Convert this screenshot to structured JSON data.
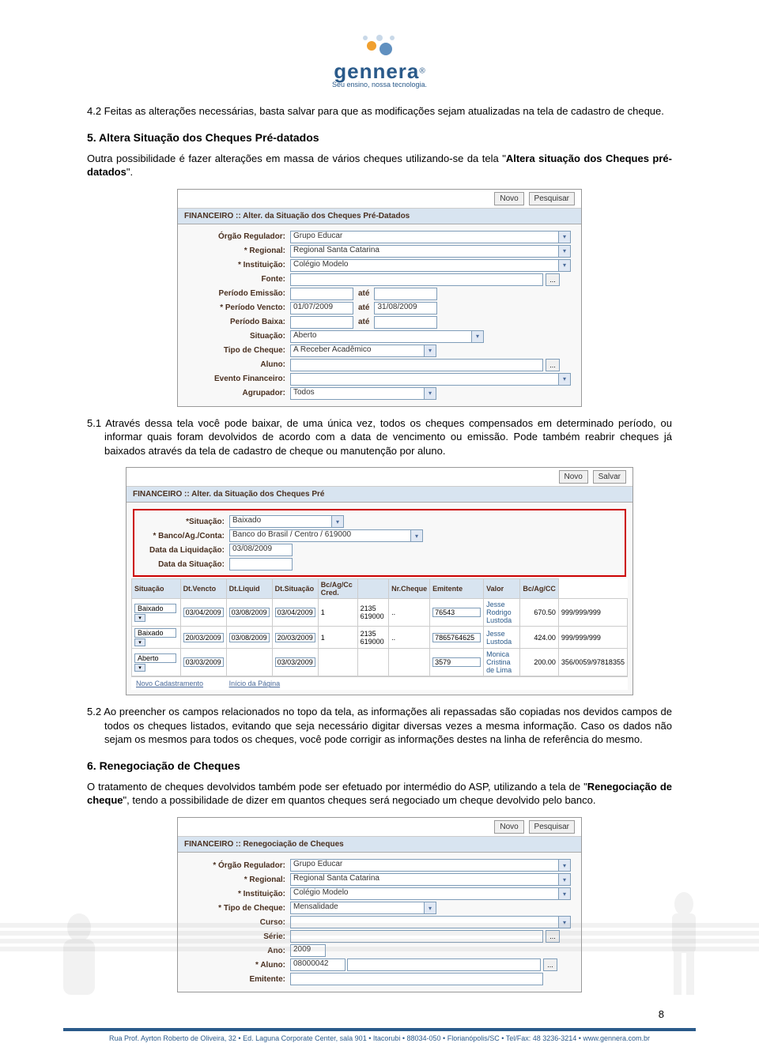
{
  "logo": {
    "brand": "gennera",
    "trademark": "®",
    "tagline": "Seu ensino, nossa tecnologia.",
    "colors": {
      "primary": "#2a5a8a",
      "accent_orange": "#f0a030",
      "accent_blue": "#6090c0"
    }
  },
  "para_4_2": "4.2 Feitas as alterações necessárias, basta salvar para que as modificações sejam atualizadas na tela de cadastro de cheque.",
  "section_5_title": "5. Altera Situação dos Cheques Pré-datados",
  "para_5_intro_1": "Outra possibilidade é fazer alterações em massa de vários cheques utilizando-se da tela \"",
  "para_5_intro_bold": "Altera situação dos Cheques pré-datados",
  "para_5_intro_2": "\".",
  "screenshot1": {
    "toolbar": {
      "novo": "Novo",
      "pesquisar": "Pesquisar"
    },
    "header": "FINANCEIRO :: Alter. da Situação dos Cheques Pré-Datados",
    "fields": {
      "orgao_label": "Órgão Regulador:",
      "orgao_value": "Grupo Educar",
      "regional_label": "* Regional:",
      "regional_value": "Regional Santa Catarina",
      "instituicao_label": "* Instituição:",
      "instituicao_value": "Colégio Modelo",
      "fonte_label": "Fonte:",
      "fonte_value": "",
      "periodo_emissao_label": "Período Emissão:",
      "periodo_emissao_ate": "até",
      "periodo_vencto_label": "* Período Vencto:",
      "periodo_vencto_de": "01/07/2009",
      "periodo_vencto_ate_lbl": "até",
      "periodo_vencto_ate": "31/08/2009",
      "periodo_baixa_label": "Período Baixa:",
      "periodo_baixa_ate": "até",
      "situacao_label": "Situação:",
      "situacao_value": "Aberto",
      "tipo_cheque_label": "Tipo de Cheque:",
      "tipo_cheque_value": "A Receber Acadêmico",
      "aluno_label": "Aluno:",
      "aluno_value": "",
      "evento_label": "Evento Financeiro:",
      "evento_value": "",
      "agrupador_label": "Agrupador:",
      "agrupador_value": "Todos"
    }
  },
  "para_5_1": "5.1 Através dessa tela você pode baixar, de uma única vez, todos os cheques compensados em determinado período, ou informar quais foram devolvidos de acordo com a data de vencimento ou emissão. Pode também reabrir cheques já baixados através da tela de cadastro de cheque ou manutenção por aluno.",
  "screenshot2": {
    "toolbar": {
      "novo": "Novo",
      "salvar": "Salvar"
    },
    "header": "FINANCEIRO :: Alter. da Situação dos Cheques Pré",
    "top": {
      "situacao_label": "*Situação:",
      "situacao_value": "Baixado",
      "banco_label": "* Banco/Ag./Conta:",
      "banco_value": "Banco do Brasil / Centro / 619000",
      "data_liq_label": "Data da Liquidação:",
      "data_liq_value": "03/08/2009",
      "data_sit_label": "Data da Situação:",
      "data_sit_value": ""
    },
    "table": {
      "headers": [
        "Situação",
        "Dt.Vencto",
        "Dt.Liquid",
        "Dt.Situação",
        "Bc/Ag/Cc Cred.",
        "",
        "Nr.Cheque",
        "Emitente",
        "Valor",
        "Bc/Ag/CC"
      ],
      "rows": [
        [
          "Baixado",
          "03/04/2009",
          "03/08/2009",
          "03/04/2009",
          "1",
          "2135 619000",
          "..",
          "76543",
          "Jesse Rodrigo Lustoda",
          "670.50",
          "999/999/999"
        ],
        [
          "Baixado",
          "20/03/2009",
          "03/08/2009",
          "20/03/2009",
          "1",
          "2135 619000",
          "..",
          "7865764625",
          "Jesse Lustoda",
          "424.00",
          "999/999/999"
        ],
        [
          "Aberto",
          "03/03/2009",
          "",
          "03/03/2009",
          "",
          "",
          "",
          "3579",
          "Monica Cristina de Lima",
          "200.00",
          "356/0059/97818355"
        ]
      ]
    },
    "footer_links": {
      "novo_cad": "Novo Cadastramento",
      "inicio": "Início da Página"
    }
  },
  "para_5_2": "5.2 Ao preencher os campos relacionados no topo da tela, as informações ali repassadas são copiadas nos devidos campos de todos os cheques listados, evitando que seja necessário digitar diversas vezes a mesma informação. Caso os dados não sejam os mesmos para todos os cheques, você pode corrigir as informações destes na linha de referência do mesmo.",
  "section_6_title": "6. Renegociação de Cheques",
  "para_6_intro_1": "O tratamento de cheques devolvidos também pode ser efetuado por intermédio do ASP, utilizando a tela de \"",
  "para_6_intro_bold": "Renegociação de cheque",
  "para_6_intro_2": "\", tendo a possibilidade de dizer em quantos cheques será negociado um cheque devolvido pelo banco.",
  "screenshot3": {
    "toolbar": {
      "novo": "Novo",
      "pesquisar": "Pesquisar"
    },
    "header": "FINANCEIRO :: Renegociação de Cheques",
    "fields": {
      "orgao_label": "* Órgão Regulador:",
      "orgao_value": "Grupo Educar",
      "regional_label": "* Regional:",
      "regional_value": "Regional Santa Catarina",
      "instituicao_label": "* Instituição:",
      "instituicao_value": "Colégio Modelo",
      "tipo_cheque_label": "* Tipo de Cheque:",
      "tipo_cheque_value": "Mensalidade",
      "curso_label": "Curso:",
      "curso_value": "",
      "serie_label": "Série:",
      "serie_value": "",
      "ano_label": "Ano:",
      "ano_value": "2009",
      "aluno_label": "* Aluno:",
      "aluno_value": "08000042",
      "emitente_label": "Emitente:",
      "emitente_value": ""
    }
  },
  "page_number": "8",
  "footer_text": "Rua Prof. Ayrton Roberto de Oliveira, 32  •  Ed. Laguna Corporate Center, sala 901  •  Itacorubi  •  88034-050  •  Florianópolis/SC  •  Tel/Fax: 48 3236-3214  •  www.gennera.com.br"
}
